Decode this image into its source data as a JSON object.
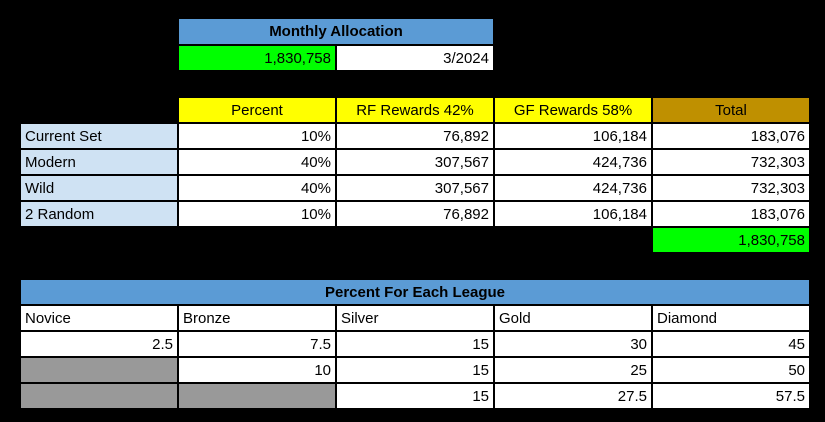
{
  "colors": {
    "header_blue": "#5b9bd5",
    "total_green": "#00ff00",
    "header_yellow": "#ffff00",
    "total_gold": "#bf9000",
    "row_label_blue": "#cfe2f3",
    "disabled_gray": "#999999",
    "cell_white": "#ffffff",
    "background": "#000000"
  },
  "monthly": {
    "title": "Monthly Allocation",
    "amount": "1,830,758",
    "date": "3/2024"
  },
  "rewards": {
    "headers": [
      "Percent",
      "RF Rewards 42%",
      "GF Rewards 58%",
      "Total"
    ],
    "rows": [
      {
        "label": "Current Set",
        "percent": "10%",
        "rf": "76,892",
        "gf": "106,184",
        "total": "183,076"
      },
      {
        "label": "Modern",
        "percent": "40%",
        "rf": "307,567",
        "gf": "424,736",
        "total": "732,303"
      },
      {
        "label": "Wild",
        "percent": "40%",
        "rf": "307,567",
        "gf": "424,736",
        "total": "732,303"
      },
      {
        "label": "2 Random",
        "percent": "10%",
        "rf": "76,892",
        "gf": "106,184",
        "total": "183,076"
      }
    ],
    "grand_total": "1,830,758"
  },
  "league": {
    "title": "Percent For Each League",
    "headers": [
      "Novice",
      "Bronze",
      "Silver",
      "Gold",
      "Diamond"
    ],
    "rows": [
      [
        "2.5",
        "7.5",
        "15",
        "30",
        "45"
      ],
      [
        "",
        "10",
        "15",
        "25",
        "50"
      ],
      [
        "",
        "",
        "15",
        "27.5",
        "57.5"
      ]
    ]
  }
}
